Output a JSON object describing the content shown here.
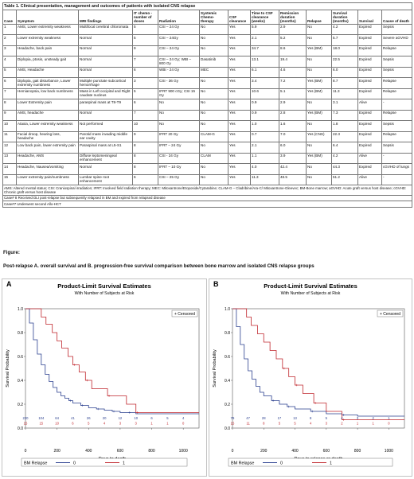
{
  "table": {
    "caption": "Table 1. Clinical presentation, management and outcomes of patients with isolated CNS relapse",
    "headers": [
      "Case",
      "Symptom",
      "MRI findings",
      "IT chemo -number of doses",
      "Radiation",
      "Systemic Chemo-therapy",
      "CSF clearance",
      "Time to CSF clearance (weeks)",
      "Remission duration (months)",
      "Relapse",
      "Survival duration (months)",
      "Survival",
      "Cause of death"
    ],
    "rows": [
      [
        "1",
        "AMS, Lower extremity weakness",
        "Multifocal cerebral chloromata",
        "5",
        "CSI – 24 Gy",
        "No",
        "Yes",
        "5.9",
        "2.9",
        "No",
        "4.2",
        "Expired",
        "Sepsis"
      ],
      [
        "2",
        "Lower extremity weakness",
        "Normal",
        "5",
        "CSI – 24Gy",
        "No",
        "Yes",
        "2.1",
        "5.2",
        "No",
        "5.7",
        "Expired",
        "Severe aGVHD"
      ],
      [
        "3",
        "Headache, back pain",
        "Normal",
        "9",
        "CSI – 24 Gy",
        "No",
        "Yes",
        "34.7",
        "8.6",
        "Yes (BM)",
        "18.0",
        "Expired",
        "Relapse"
      ],
      [
        "4",
        "Diplopia, ptosis, unsteady gait",
        "Normal",
        "7",
        "CSI – 24 Gy; WBI – 800 Gy",
        "Dasatinib",
        "Yes",
        "13.1",
        "19.4",
        "No",
        "22.5",
        "Expired",
        "Sepsis"
      ],
      [
        "5",
        "AMS, Headache",
        "Normal",
        "6",
        "WBI - 24 Gy",
        "MEC",
        "Yes",
        "6.1",
        "4.6",
        "No",
        "6.0",
        "Expired",
        "Sepsis"
      ],
      [
        "6",
        "Diplopia, gait disturbance, Lower extremity numbness",
        "Multiple punctate subcortical hemorrhage",
        "3",
        "CSI - 36 Gy",
        "No",
        "Yes",
        "3.4",
        "7.2",
        "Yes (BM)",
        "8.7",
        "Expired",
        "Relapse"
      ],
      [
        "7",
        "Hemianopsia, low back numbness",
        "Mass in Left occipital and Right caudate nucleus",
        "5",
        "IFRT 900 cGy; CSI 15 Gy",
        "No",
        "Yes",
        "10.6",
        "5.1",
        "Yes (BM)",
        "11.3",
        "Expired",
        "Relapse"
      ],
      [
        "8",
        "Lower Extremity pain",
        "paraspinal mass at T8-T9",
        "6",
        "No",
        "No",
        "Yes",
        "0.9",
        "2.9",
        "No",
        "3.1",
        "Alive",
        "-"
      ],
      [
        "9",
        "AMS, headache",
        "Normal",
        "7",
        "No",
        "No",
        "Yes",
        "0.9",
        "2.8",
        "Yes (BM)",
        "7.3",
        "Expired",
        "Relapse"
      ],
      [
        "10",
        "Ataxia, Lower extremity weakness",
        "Not performed",
        "10",
        "No",
        "No",
        "Yes",
        "1.0",
        "1.6",
        "No",
        "1.8",
        "Expired",
        "Sepsis"
      ],
      [
        "11",
        "Facial droop, hearing loss, headache",
        "Parotid mass invading middle ear cavity",
        "9",
        "IFRT 20 Gy",
        "CLAM-G",
        "Yes",
        "0.7",
        "7.0",
        "Yes (CNS)",
        "22.3",
        "Expired",
        "Relapse"
      ],
      [
        "12",
        "Low back pain, lower extremity pain",
        "Paraspinal mass at L5-S1",
        "8",
        "IFRT – 24 Gy",
        "No",
        "Yes",
        "2.1",
        "6.0",
        "No",
        "6.4",
        "Expired",
        "Sepsis"
      ],
      [
        "13",
        "Headache, AMS",
        "Diffuse leptomeningeal enhancement",
        "8",
        "CSI - 24 Gy",
        "CLAM",
        "Yes",
        "1.1",
        "3.9",
        "Yes (BM)",
        "4.2",
        "Alive",
        "-"
      ],
      [
        "14",
        "Headache, Nausea/vomiting",
        "Normal",
        "8",
        "IFRT – 10 Gy",
        "No",
        "Yes",
        "4.0",
        "42.4",
        "No",
        "44.3",
        "Expired",
        "cGVHD of lungs"
      ],
      [
        "15",
        "Lower extremity pain/numbness",
        "Lumbar spine root enhancement",
        "6",
        "CSI – 25 Gy",
        "No",
        "Yes",
        "11.3",
        "48.5",
        "No",
        "51.2",
        "Alive",
        "-"
      ]
    ],
    "notes": [
      "AMS: Altered mental status; CSI: Craniospinal irradiation; IFRT: Involved field radiation therapy; MEC: Mitoxantrone/Etoposide/Cytarabine; CLAM-G – Cladribine/Ara-C/ Mitoxantrone-Gleevec; BM-Bone marrow; aGVHD: Acute graft versus host disease; cGVHD: Chronic graft versus host disease",
      "Case# 8 Received DLI post-relapse but subsequently relapsed in BM and expired from relapsed disease",
      "Case#7 Underwent second Allo-HCT"
    ]
  },
  "figure": {
    "label": "Figure:",
    "subtitle": "Post-relapse A. overall survival and B. progression-free survival comparison between bone marrow and isolated CNS relapse groups"
  },
  "chart_data": [
    {
      "type": "line",
      "panel": "A",
      "title": "Product-Limit Survival Estimates",
      "subtitle": "With Number of Subjects at Risk",
      "xlabel": "Days to death",
      "ylabel": "Survival Probability",
      "xlim": [
        0,
        1100
      ],
      "ylim": [
        0,
        1.0
      ],
      "x_ticks": [
        0,
        200,
        400,
        600,
        800,
        1000
      ],
      "y_ticks": [
        "0.0",
        "0.2",
        "0.4",
        "0.6",
        "0.8",
        "1.0"
      ],
      "censored_legend": "+ Censored",
      "legend_title": "BM Relapse",
      "series": [
        {
          "name": "0",
          "color": "#2a3f8f",
          "x": [
            0,
            25,
            50,
            75,
            100,
            125,
            150,
            175,
            200,
            225,
            250,
            275,
            300,
            350,
            400,
            450,
            500,
            550,
            600,
            650,
            700,
            1100
          ],
          "y": [
            1.0,
            0.88,
            0.74,
            0.62,
            0.53,
            0.45,
            0.39,
            0.34,
            0.3,
            0.27,
            0.25,
            0.23,
            0.21,
            0.19,
            0.17,
            0.16,
            0.15,
            0.14,
            0.13,
            0.13,
            0.12,
            0.12
          ]
        },
        {
          "name": "1",
          "color": "#c0262c",
          "x": [
            0,
            60,
            100,
            130,
            170,
            200,
            230,
            270,
            300,
            340,
            380,
            420,
            520,
            640,
            700,
            1100
          ],
          "y": [
            1.0,
            1.0,
            0.93,
            0.87,
            0.8,
            0.73,
            0.67,
            0.6,
            0.53,
            0.47,
            0.4,
            0.33,
            0.27,
            0.2,
            0.13,
            0.13
          ]
        }
      ],
      "at_risk_x": [
        0,
        100,
        200,
        300,
        400,
        500,
        600,
        700,
        800,
        900,
        1000
      ],
      "at_risk": [
        [
          "220",
          "104",
          "64",
          "41",
          "26",
          "20",
          "12",
          "10",
          "6",
          "5",
          "4"
        ],
        [
          "15",
          "15",
          "10",
          "6",
          "5",
          "4",
          "3",
          "3",
          "1",
          "1",
          "0"
        ]
      ]
    },
    {
      "type": "line",
      "panel": "B",
      "title": "Product-Limit Survival Estimates",
      "subtitle": "With Number of Subjects at Risk",
      "xlabel": "Days to relapse or death",
      "ylabel": "Survival Probability",
      "xlim": [
        0,
        1100
      ],
      "ylim": [
        0,
        1.0
      ],
      "x_ticks": [
        0,
        200,
        400,
        600,
        800,
        1000
      ],
      "y_ticks": [
        "0.0",
        "0.2",
        "0.4",
        "0.6",
        "0.8",
        "1.0"
      ],
      "censored_legend": "+ Censored",
      "legend_title": "BM Relapse",
      "series": [
        {
          "name": "0",
          "color": "#2a3f8f",
          "x": [
            0,
            25,
            50,
            75,
            100,
            125,
            150,
            175,
            200,
            250,
            300,
            350,
            400,
            500,
            600,
            700,
            800,
            1100
          ],
          "y": [
            1.0,
            0.85,
            0.7,
            0.58,
            0.48,
            0.41,
            0.35,
            0.3,
            0.27,
            0.23,
            0.2,
            0.18,
            0.16,
            0.14,
            0.12,
            0.11,
            0.1,
            0.1
          ]
        },
        {
          "name": "1",
          "color": "#c0262c",
          "x": [
            0,
            50,
            90,
            120,
            160,
            200,
            240,
            280,
            320,
            360,
            400,
            450,
            520,
            600,
            700,
            1100
          ],
          "y": [
            1.0,
            1.0,
            0.93,
            0.86,
            0.79,
            0.72,
            0.65,
            0.58,
            0.5,
            0.43,
            0.36,
            0.29,
            0.21,
            0.14,
            0.07,
            0.07
          ]
        }
      ],
      "at_risk_x": [
        0,
        100,
        200,
        300,
        400,
        500,
        600,
        700,
        800,
        900,
        1000
      ],
      "at_risk": [
        [
          "79",
          "47",
          "28",
          "17",
          "13",
          "8",
          "5",
          "4",
          "3",
          "2",
          "1"
        ],
        [
          "15",
          "11",
          "8",
          "5",
          "5",
          "4",
          "3",
          "2",
          "1",
          "1",
          "0"
        ]
      ]
    }
  ]
}
